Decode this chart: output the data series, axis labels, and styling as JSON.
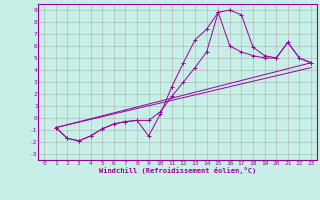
{
  "xlabel": "Windchill (Refroidissement éolien,°C)",
  "bg_color": "#c8eee8",
  "grid_color": "#b0b0b0",
  "line_color": "#990099",
  "xlim": [
    -0.5,
    23.5
  ],
  "ylim": [
    -3.5,
    9.5
  ],
  "xticks": [
    0,
    1,
    2,
    3,
    4,
    5,
    6,
    7,
    8,
    9,
    10,
    11,
    12,
    13,
    14,
    15,
    16,
    17,
    18,
    19,
    20,
    21,
    22,
    23
  ],
  "yticks": [
    -3,
    -2,
    -1,
    0,
    1,
    2,
    3,
    4,
    5,
    6,
    7,
    8,
    9
  ],
  "curve1_x": [
    1,
    2,
    3,
    4,
    5,
    6,
    7,
    8,
    9,
    10,
    11,
    12,
    13,
    14,
    15,
    16,
    17,
    18,
    19,
    20,
    21,
    22,
    23
  ],
  "curve1_y": [
    -0.8,
    -1.7,
    -1.9,
    -1.5,
    -0.9,
    -0.5,
    -0.3,
    -0.2,
    -1.5,
    0.3,
    2.6,
    4.6,
    6.5,
    7.4,
    8.8,
    9.0,
    8.6,
    5.9,
    5.2,
    5.0,
    6.3,
    5.0,
    4.6
  ],
  "curve2_x": [
    1,
    2,
    3,
    4,
    5,
    6,
    7,
    8,
    9,
    10,
    11,
    12,
    13,
    14,
    15,
    16,
    17,
    18,
    19,
    20,
    21,
    22,
    23
  ],
  "curve2_y": [
    -0.8,
    -1.7,
    -1.9,
    -1.5,
    -0.9,
    -0.5,
    -0.3,
    -0.2,
    -0.2,
    0.5,
    1.8,
    3.0,
    4.2,
    5.5,
    8.8,
    6.0,
    5.5,
    5.2,
    5.0,
    5.0,
    6.3,
    5.0,
    4.6
  ],
  "line1_x": [
    1,
    23
  ],
  "line1_y": [
    -0.8,
    4.6
  ],
  "line2_x": [
    1,
    23
  ],
  "line2_y": [
    -0.8,
    4.2
  ]
}
